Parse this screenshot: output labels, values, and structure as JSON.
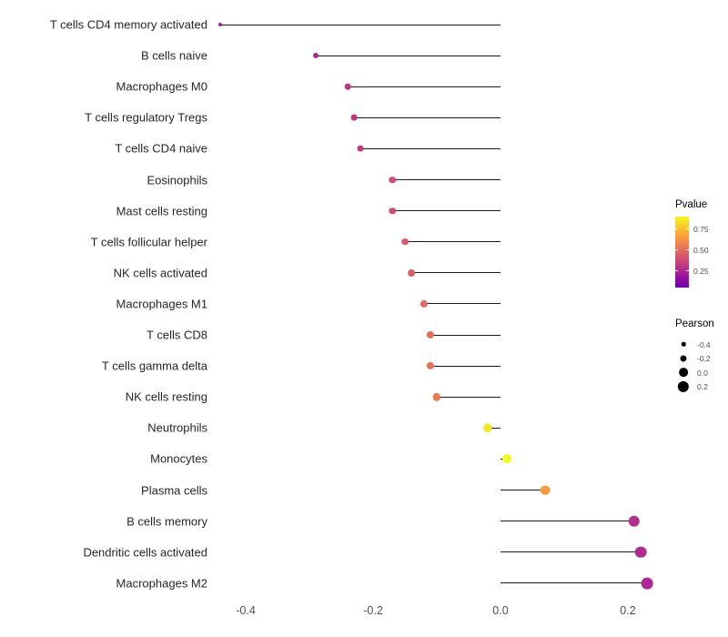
{
  "chart_data": {
    "type": "lollipop",
    "orientation": "horizontal",
    "title": "",
    "xlabel": "",
    "ylabel": "",
    "grid": false,
    "baseline": 0,
    "xlim": [
      -0.47,
      0.28
    ],
    "x_axis": {
      "ticks": [
        "-0.4",
        "-0.2",
        "0.0",
        "0.2"
      ],
      "tick_values": [
        -0.4,
        -0.2,
        0.0,
        0.2
      ]
    },
    "points": [
      {
        "label": "T cells CD4 memory activated",
        "pearson": -0.44,
        "pvalue_approx": 0.25,
        "color": "#A21D9A"
      },
      {
        "label": "B cells naive",
        "pearson": -0.29,
        "pvalue_approx": 0.3,
        "color": "#B12A90"
      },
      {
        "label": "Macrophages M0",
        "pearson": -0.24,
        "pvalue_approx": 0.33,
        "color": "#BB3488"
      },
      {
        "label": "T cells regulatory  Tregs",
        "pearson": -0.23,
        "pvalue_approx": 0.34,
        "color": "#BD3786"
      },
      {
        "label": "T cells CD4 naive",
        "pearson": -0.22,
        "pvalue_approx": 0.35,
        "color": "#C23C81"
      },
      {
        "label": "Eosinophils",
        "pearson": -0.17,
        "pvalue_approx": 0.45,
        "color": "#D14E72"
      },
      {
        "label": "Mast cells resting",
        "pearson": -0.17,
        "pvalue_approx": 0.45,
        "color": "#D24F71"
      },
      {
        "label": "T cells follicular helper",
        "pearson": -0.15,
        "pvalue_approx": 0.5,
        "color": "#DA5B69"
      },
      {
        "label": "NK cells activated",
        "pearson": -0.14,
        "pvalue_approx": 0.51,
        "color": "#DD5E66"
      },
      {
        "label": "Macrophages M1",
        "pearson": -0.12,
        "pvalue_approx": 0.55,
        "color": "#E3685D"
      },
      {
        "label": "T cells CD8",
        "pearson": -0.11,
        "pvalue_approx": 0.57,
        "color": "#E76F59"
      },
      {
        "label": "T cells gamma delta",
        "pearson": -0.11,
        "pvalue_approx": 0.58,
        "color": "#E87257"
      },
      {
        "label": "NK cells resting",
        "pearson": -0.1,
        "pvalue_approx": 0.6,
        "color": "#EB7852"
      },
      {
        "label": "Neutrophils",
        "pearson": -0.02,
        "pvalue_approx": 0.9,
        "color": "#F4E625"
      },
      {
        "label": "Monocytes",
        "pearson": 0.01,
        "pvalue_approx": 0.95,
        "color": "#F0F921"
      },
      {
        "label": "Plasma cells",
        "pearson": 0.07,
        "pvalue_approx": 0.72,
        "color": "#F79C42"
      },
      {
        "label": "B cells memory",
        "pearson": 0.21,
        "pvalue_approx": 0.31,
        "color": "#B5308D"
      },
      {
        "label": "Dendritic cells activated",
        "pearson": 0.22,
        "pvalue_approx": 0.29,
        "color": "#B02A91"
      },
      {
        "label": "Macrophages M2",
        "pearson": 0.23,
        "pvalue_approx": 0.28,
        "color": "#AC2694"
      }
    ],
    "legends": {
      "pvalue": {
        "title": "Pvalue",
        "ticks": [
          "0.75",
          "0.50",
          "0.25"
        ],
        "gradient_top_to_bottom": [
          "#F0F921",
          "#FCCE25",
          "#FCA636",
          "#F1844B",
          "#E16462",
          "#CC4778",
          "#B12A90",
          "#8F0DA4",
          "#7301A8"
        ]
      },
      "pearson": {
        "title": "Pearson",
        "items": [
          {
            "label": "-0.4",
            "value": -0.4
          },
          {
            "label": "-0.2",
            "value": -0.2
          },
          {
            "label": "0.0",
            "value": 0.0
          },
          {
            "label": "0.2",
            "value": 0.2
          }
        ]
      }
    }
  }
}
